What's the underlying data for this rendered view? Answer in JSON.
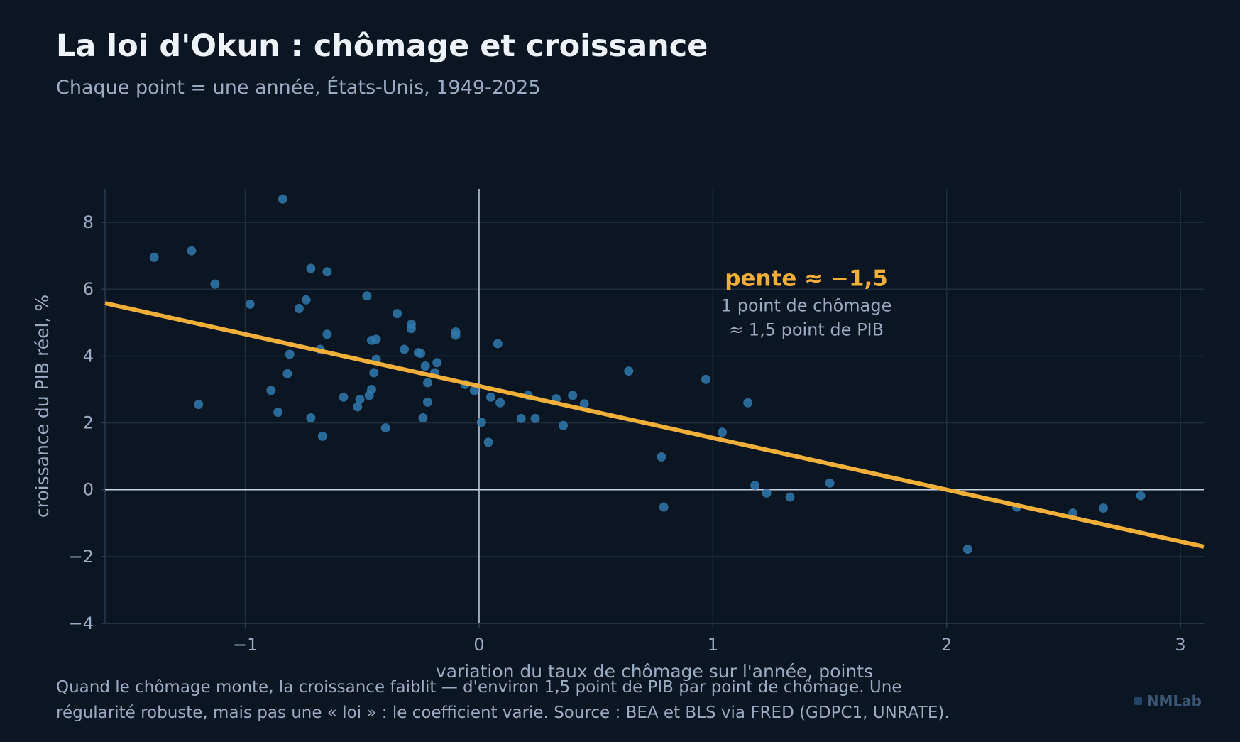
{
  "header": {
    "title": "La loi d'Okun : chômage et croissance",
    "subtitle": "Chaque point = une année, États-Unis, 1949-2025"
  },
  "footer": {
    "caption_line1": "Quand le chômage monte, la croissance faiblit — d'environ 1,5 point de PIB par point de chômage. Une",
    "caption_line2": "régularité robuste, mais pas une « loi » : le coefficient varie. Source : BEA et BLS via FRED (GDPC1, UNRATE).",
    "brand": "NMLab"
  },
  "colors": {
    "background": "#0c1622",
    "points": "#2f79ad",
    "fit_line": "#f0ae3a",
    "axis_zero": "#c7d2e2",
    "grid": "#1f2d3d"
  },
  "chart_data": {
    "type": "scatter",
    "xlabel": "variation du taux de chômage sur l'année, points",
    "ylabel": "croissance du PIB réel, %",
    "xlim": [
      -1.6,
      3.1
    ],
    "ylim": [
      -4,
      9
    ],
    "xticks": [
      -1,
      0,
      1,
      2,
      3
    ],
    "yticks": [
      -4,
      -2,
      0,
      2,
      4,
      6,
      8
    ],
    "xtick_labels": [
      "−1",
      "0",
      "1",
      "2",
      "3"
    ],
    "ytick_labels": [
      "−4",
      "−2",
      "0",
      "2",
      "4",
      "6",
      "8"
    ],
    "grid": true,
    "fit_line": {
      "slope": -1.55,
      "intercept": 3.1
    },
    "annotation": {
      "title": "pente ≈ −1,5",
      "line1": "1 point de chômage",
      "line2": "≈ 1,5 point de PIB",
      "x": 1.4,
      "y": 6.1
    },
    "points": [
      {
        "x": -1.39,
        "y": 6.95
      },
      {
        "x": -1.23,
        "y": 7.15
      },
      {
        "x": -1.13,
        "y": 6.15
      },
      {
        "x": -1.2,
        "y": 2.55
      },
      {
        "x": -0.98,
        "y": 5.55
      },
      {
        "x": -0.84,
        "y": 8.7
      },
      {
        "x": -0.89,
        "y": 2.97
      },
      {
        "x": -0.86,
        "y": 2.32
      },
      {
        "x": -0.82,
        "y": 3.47
      },
      {
        "x": -0.81,
        "y": 4.05
      },
      {
        "x": -0.77,
        "y": 5.42
      },
      {
        "x": -0.74,
        "y": 5.68
      },
      {
        "x": -0.72,
        "y": 6.62
      },
      {
        "x": -0.72,
        "y": 2.15
      },
      {
        "x": -0.68,
        "y": 4.2
      },
      {
        "x": -0.67,
        "y": 1.6
      },
      {
        "x": -0.65,
        "y": 6.52
      },
      {
        "x": -0.65,
        "y": 4.65
      },
      {
        "x": -0.58,
        "y": 2.77
      },
      {
        "x": -0.52,
        "y": 2.48
      },
      {
        "x": -0.51,
        "y": 2.7
      },
      {
        "x": -0.48,
        "y": 5.8
      },
      {
        "x": -0.47,
        "y": 2.82
      },
      {
        "x": -0.46,
        "y": 3.0
      },
      {
        "x": -0.46,
        "y": 4.47
      },
      {
        "x": -0.45,
        "y": 3.5
      },
      {
        "x": -0.44,
        "y": 3.9
      },
      {
        "x": -0.44,
        "y": 4.5
      },
      {
        "x": -0.4,
        "y": 1.85
      },
      {
        "x": -0.35,
        "y": 5.27
      },
      {
        "x": -0.32,
        "y": 4.2
      },
      {
        "x": -0.29,
        "y": 4.95
      },
      {
        "x": -0.29,
        "y": 4.82
      },
      {
        "x": -0.26,
        "y": 4.1
      },
      {
        "x": -0.25,
        "y": 4.08
      },
      {
        "x": -0.24,
        "y": 2.15
      },
      {
        "x": -0.23,
        "y": 3.7
      },
      {
        "x": -0.22,
        "y": 3.2
      },
      {
        "x": -0.22,
        "y": 2.62
      },
      {
        "x": -0.19,
        "y": 3.5
      },
      {
        "x": -0.18,
        "y": 3.8
      },
      {
        "x": -0.1,
        "y": 4.62
      },
      {
        "x": -0.1,
        "y": 4.72
      },
      {
        "x": -0.06,
        "y": 3.15
      },
      {
        "x": -0.02,
        "y": 2.97
      },
      {
        "x": 0.01,
        "y": 2.02
      },
      {
        "x": 0.04,
        "y": 1.42
      },
      {
        "x": 0.05,
        "y": 2.77
      },
      {
        "x": 0.08,
        "y": 4.37
      },
      {
        "x": 0.09,
        "y": 2.6
      },
      {
        "x": 0.18,
        "y": 2.13
      },
      {
        "x": 0.21,
        "y": 2.82
      },
      {
        "x": 0.24,
        "y": 2.13
      },
      {
        "x": 0.33,
        "y": 2.72
      },
      {
        "x": 0.36,
        "y": 1.92
      },
      {
        "x": 0.4,
        "y": 2.82
      },
      {
        "x": 0.45,
        "y": 2.57
      },
      {
        "x": 0.64,
        "y": 3.55
      },
      {
        "x": 0.78,
        "y": 0.98
      },
      {
        "x": 0.79,
        "y": -0.52
      },
      {
        "x": 0.97,
        "y": 3.3
      },
      {
        "x": 1.04,
        "y": 1.72
      },
      {
        "x": 1.15,
        "y": 2.6
      },
      {
        "x": 1.18,
        "y": 0.13
      },
      {
        "x": 1.23,
        "y": -0.1
      },
      {
        "x": 1.33,
        "y": -0.22
      },
      {
        "x": 1.5,
        "y": 0.2
      },
      {
        "x": 2.09,
        "y": -1.78
      },
      {
        "x": 2.3,
        "y": -0.52
      },
      {
        "x": 2.54,
        "y": -0.7
      },
      {
        "x": 2.67,
        "y": -0.55
      },
      {
        "x": 2.83,
        "y": -0.18
      }
    ]
  }
}
